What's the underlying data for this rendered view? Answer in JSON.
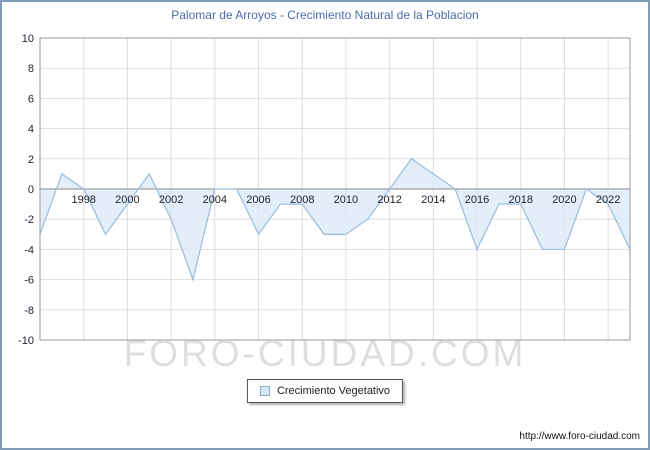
{
  "title": "Palomar de Arroyos - Crecimiento Natural de la Poblacion",
  "legend": {
    "label": "Crecimiento Vegetativo"
  },
  "watermark": "FORO-CIUDAD.COM",
  "footer_url": "http://www.foro-ciudad.com",
  "chart_data": {
    "type": "area",
    "title": "Palomar de Arroyos - Crecimiento Natural de la Poblacion",
    "series_name": "Crecimiento Vegetativo",
    "x": [
      1996,
      1997,
      1998,
      1999,
      2000,
      2001,
      2002,
      2003,
      2004,
      2005,
      2006,
      2007,
      2008,
      2009,
      2010,
      2011,
      2012,
      2013,
      2014,
      2015,
      2016,
      2017,
      2018,
      2019,
      2020,
      2021,
      2022,
      2023
    ],
    "values": [
      -3,
      1,
      0,
      -3,
      -1,
      1,
      -2,
      -6,
      0,
      0,
      -3,
      -1,
      -1,
      -3,
      -3,
      -2,
      0,
      2,
      1,
      0,
      -4,
      -1,
      -1,
      -4,
      -4,
      0,
      -1,
      -4
    ],
    "x_range": [
      1996,
      2023
    ],
    "ylim": [
      -10,
      10
    ],
    "y_tick_step": 2,
    "x_tick_years": [
      1998,
      2000,
      2002,
      2004,
      2006,
      2008,
      2010,
      2012,
      2014,
      2016,
      2018,
      2020,
      2022
    ],
    "grid": true,
    "legend_position": "bottom",
    "colors": {
      "line": "#9fbfdf",
      "fill": "#d9e8f7",
      "title": "#4a6da8",
      "grid": "#dddddd",
      "zero_axis": "#888888",
      "plot_border": "#999999"
    }
  }
}
